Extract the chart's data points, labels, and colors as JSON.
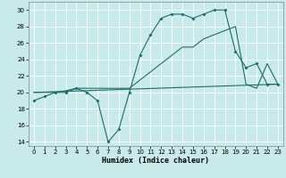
{
  "xlabel": "Humidex (Indice chaleur)",
  "xlim": [
    -0.5,
    23.5
  ],
  "ylim": [
    13.5,
    31.0
  ],
  "yticks": [
    14,
    16,
    18,
    20,
    22,
    24,
    26,
    28,
    30
  ],
  "xticks": [
    0,
    1,
    2,
    3,
    4,
    5,
    6,
    7,
    8,
    9,
    10,
    11,
    12,
    13,
    14,
    15,
    16,
    17,
    18,
    19,
    20,
    21,
    22,
    23
  ],
  "bg_color": "#c9eaea",
  "line_color": "#1e6b6b",
  "grid_color": "#ffffff",
  "line1_x": [
    0,
    1,
    2,
    3,
    4,
    5,
    6,
    7,
    8,
    9,
    10,
    11,
    12,
    13,
    14,
    15,
    16,
    17,
    18,
    19,
    20,
    21,
    22,
    23
  ],
  "line1_y": [
    19.0,
    19.5,
    20.0,
    20.0,
    20.5,
    20.0,
    19.0,
    14.0,
    15.5,
    20.0,
    24.5,
    27.0,
    29.0,
    29.5,
    29.5,
    29.0,
    29.5,
    30.0,
    30.0,
    25.0,
    23.0,
    23.5,
    21.0,
    21.0
  ],
  "line2_x": [
    0,
    23
  ],
  "line2_y": [
    20.0,
    21.0
  ],
  "line3_x": [
    0,
    1,
    2,
    3,
    4,
    5,
    6,
    7,
    8,
    9,
    10,
    11,
    12,
    13,
    14,
    15,
    16,
    17,
    18,
    19,
    20,
    21,
    22,
    23
  ],
  "line3_y": [
    20.0,
    20.0,
    20.0,
    20.2,
    20.5,
    20.5,
    20.5,
    20.5,
    20.5,
    20.5,
    21.5,
    22.5,
    23.5,
    24.5,
    25.5,
    25.5,
    26.5,
    27.0,
    27.5,
    28.0,
    21.0,
    20.5,
    23.5,
    21.0
  ]
}
